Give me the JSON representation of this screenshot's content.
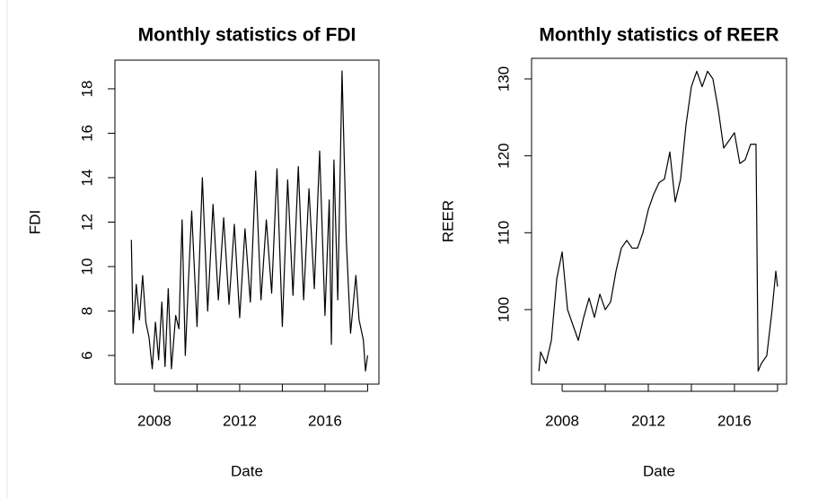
{
  "chart_data": [
    {
      "type": "line",
      "title": "Monthly statistics of FDI",
      "x_label": "Date",
      "y_label": "FDI",
      "color": "#000000",
      "x": [
        2006.92,
        2007.0,
        2007.15,
        2007.3,
        2007.45,
        2007.6,
        2007.75,
        2007.9,
        2008.05,
        2008.2,
        2008.35,
        2008.5,
        2008.65,
        2008.8,
        2009.0,
        2009.15,
        2009.3,
        2009.45,
        2009.6,
        2009.75,
        2010.0,
        2010.25,
        2010.5,
        2010.75,
        2011.0,
        2011.25,
        2011.5,
        2011.75,
        2012.0,
        2012.25,
        2012.5,
        2012.75,
        2013.0,
        2013.25,
        2013.5,
        2013.75,
        2014.0,
        2014.25,
        2014.5,
        2014.75,
        2015.0,
        2015.25,
        2015.5,
        2015.75,
        2016.0,
        2016.2,
        2016.3,
        2016.42,
        2016.6,
        2016.8,
        2017.0,
        2017.2,
        2017.45,
        2017.6,
        2017.8,
        2017.9,
        2018.0
      ],
      "values": [
        11.2,
        7.0,
        9.2,
        7.6,
        9.6,
        7.5,
        6.8,
        5.4,
        7.5,
        5.8,
        8.4,
        5.5,
        9.0,
        5.4,
        7.8,
        7.2,
        12.1,
        6.0,
        9.4,
        12.5,
        7.3,
        14.0,
        8.0,
        12.8,
        8.5,
        12.2,
        8.3,
        11.9,
        7.7,
        11.7,
        8.4,
        14.3,
        8.5,
        12.1,
        8.8,
        14.4,
        7.3,
        13.9,
        8.7,
        14.5,
        8.5,
        13.5,
        9.0,
        15.2,
        7.8,
        13.0,
        6.5,
        14.8,
        8.5,
        18.8,
        11.2,
        7.0,
        9.6,
        7.6,
        6.7,
        5.3,
        6.0
      ],
      "xlim": [
        2006.15,
        2018.53
      ],
      "ylim": [
        4.71,
        19.29
      ],
      "xticks": [
        2008,
        2012,
        2016
      ],
      "xticks_unlabeled": [
        2010,
        2014,
        2018
      ],
      "yticks": [
        6,
        8,
        10,
        12,
        14,
        16,
        18
      ]
    },
    {
      "type": "line",
      "title": "Monthly statistics of REER",
      "x_label": "Date",
      "y_label": "REER",
      "color": "#000000",
      "x": [
        2006.92,
        2007.0,
        2007.25,
        2007.5,
        2007.75,
        2008.0,
        2008.25,
        2008.5,
        2008.75,
        2009.0,
        2009.25,
        2009.5,
        2009.75,
        2010.0,
        2010.25,
        2010.5,
        2010.75,
        2011.0,
        2011.25,
        2011.5,
        2011.75,
        2012.0,
        2012.25,
        2012.5,
        2012.75,
        2013.0,
        2013.25,
        2013.5,
        2013.75,
        2014.0,
        2014.25,
        2014.5,
        2014.75,
        2015.0,
        2015.25,
        2015.5,
        2015.75,
        2016.0,
        2016.25,
        2016.5,
        2016.75,
        2017.0,
        2017.1,
        2017.25,
        2017.5,
        2017.75,
        2017.92,
        2018.0
      ],
      "values": [
        92,
        94.5,
        93,
        96,
        104,
        107.5,
        100,
        98,
        96,
        99,
        101.5,
        99,
        102,
        100,
        101,
        105,
        108,
        109,
        108,
        108,
        110,
        113,
        115,
        116.5,
        117,
        120.5,
        114,
        117,
        124,
        129,
        131,
        129,
        131,
        130,
        126,
        121,
        122,
        123,
        119,
        119.5,
        121.5,
        121.5,
        92,
        93,
        94,
        100,
        105,
        103
      ],
      "xlim": [
        2006.58,
        2018.42
      ],
      "ylim": [
        90.31,
        132.68
      ],
      "xticks": [
        2008,
        2012,
        2016
      ],
      "xticks_unlabeled": [
        2010,
        2014,
        2018
      ],
      "yticks": [
        100,
        110,
        120,
        130
      ]
    }
  ]
}
